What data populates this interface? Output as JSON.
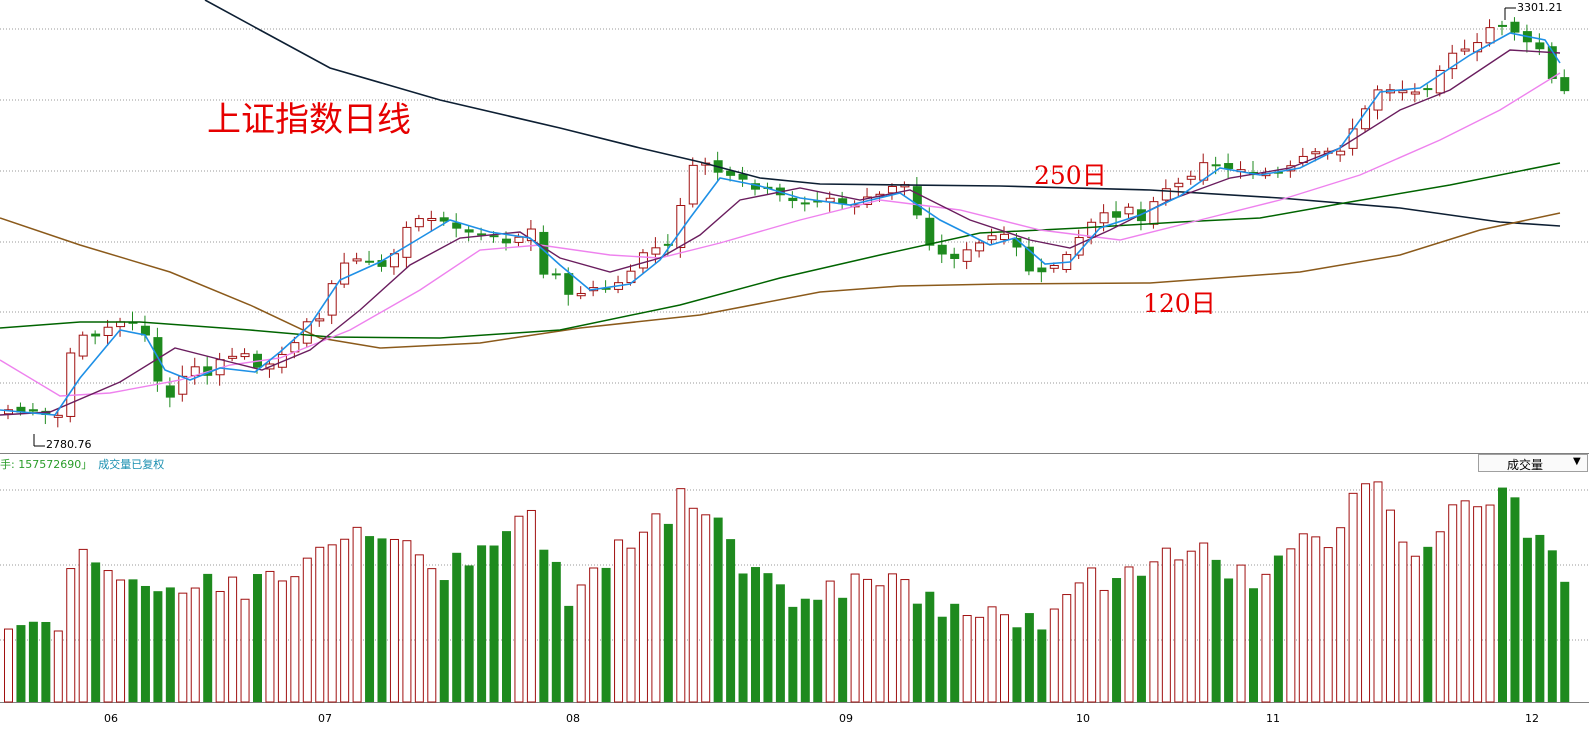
{
  "title_annotation": "上证指数日线",
  "labels": {
    "ma250": "250日",
    "ma120": "120日",
    "high": "3301.21",
    "low": "2780.76"
  },
  "volume_panel": {
    "value_prefix": "手: ",
    "value": "157572690",
    "suffix": "」",
    "note": "成交量已复权",
    "dropdown_label": "成交量"
  },
  "colors": {
    "up": "#a01010",
    "down": "#1e8a1e",
    "ma5": "#1e90e6",
    "ma10": "#6a1d5e",
    "ma20": "#ee82ee",
    "ma60": "#006400",
    "ma120": "#8b5a1b",
    "ma250": "#0d1f33",
    "annotation": "#e60000"
  },
  "chart_data": {
    "type": "candlestick",
    "title": "上证指数日线",
    "x_tick_labels": [
      "06",
      "07",
      "08",
      "09",
      "10",
      "11",
      "12"
    ],
    "price_range": [
      2740,
      3320
    ],
    "volume_range": [
      0,
      540000000
    ],
    "high_point": 3301.21,
    "low_point": 2780.76,
    "last_volume": 157572690
  }
}
